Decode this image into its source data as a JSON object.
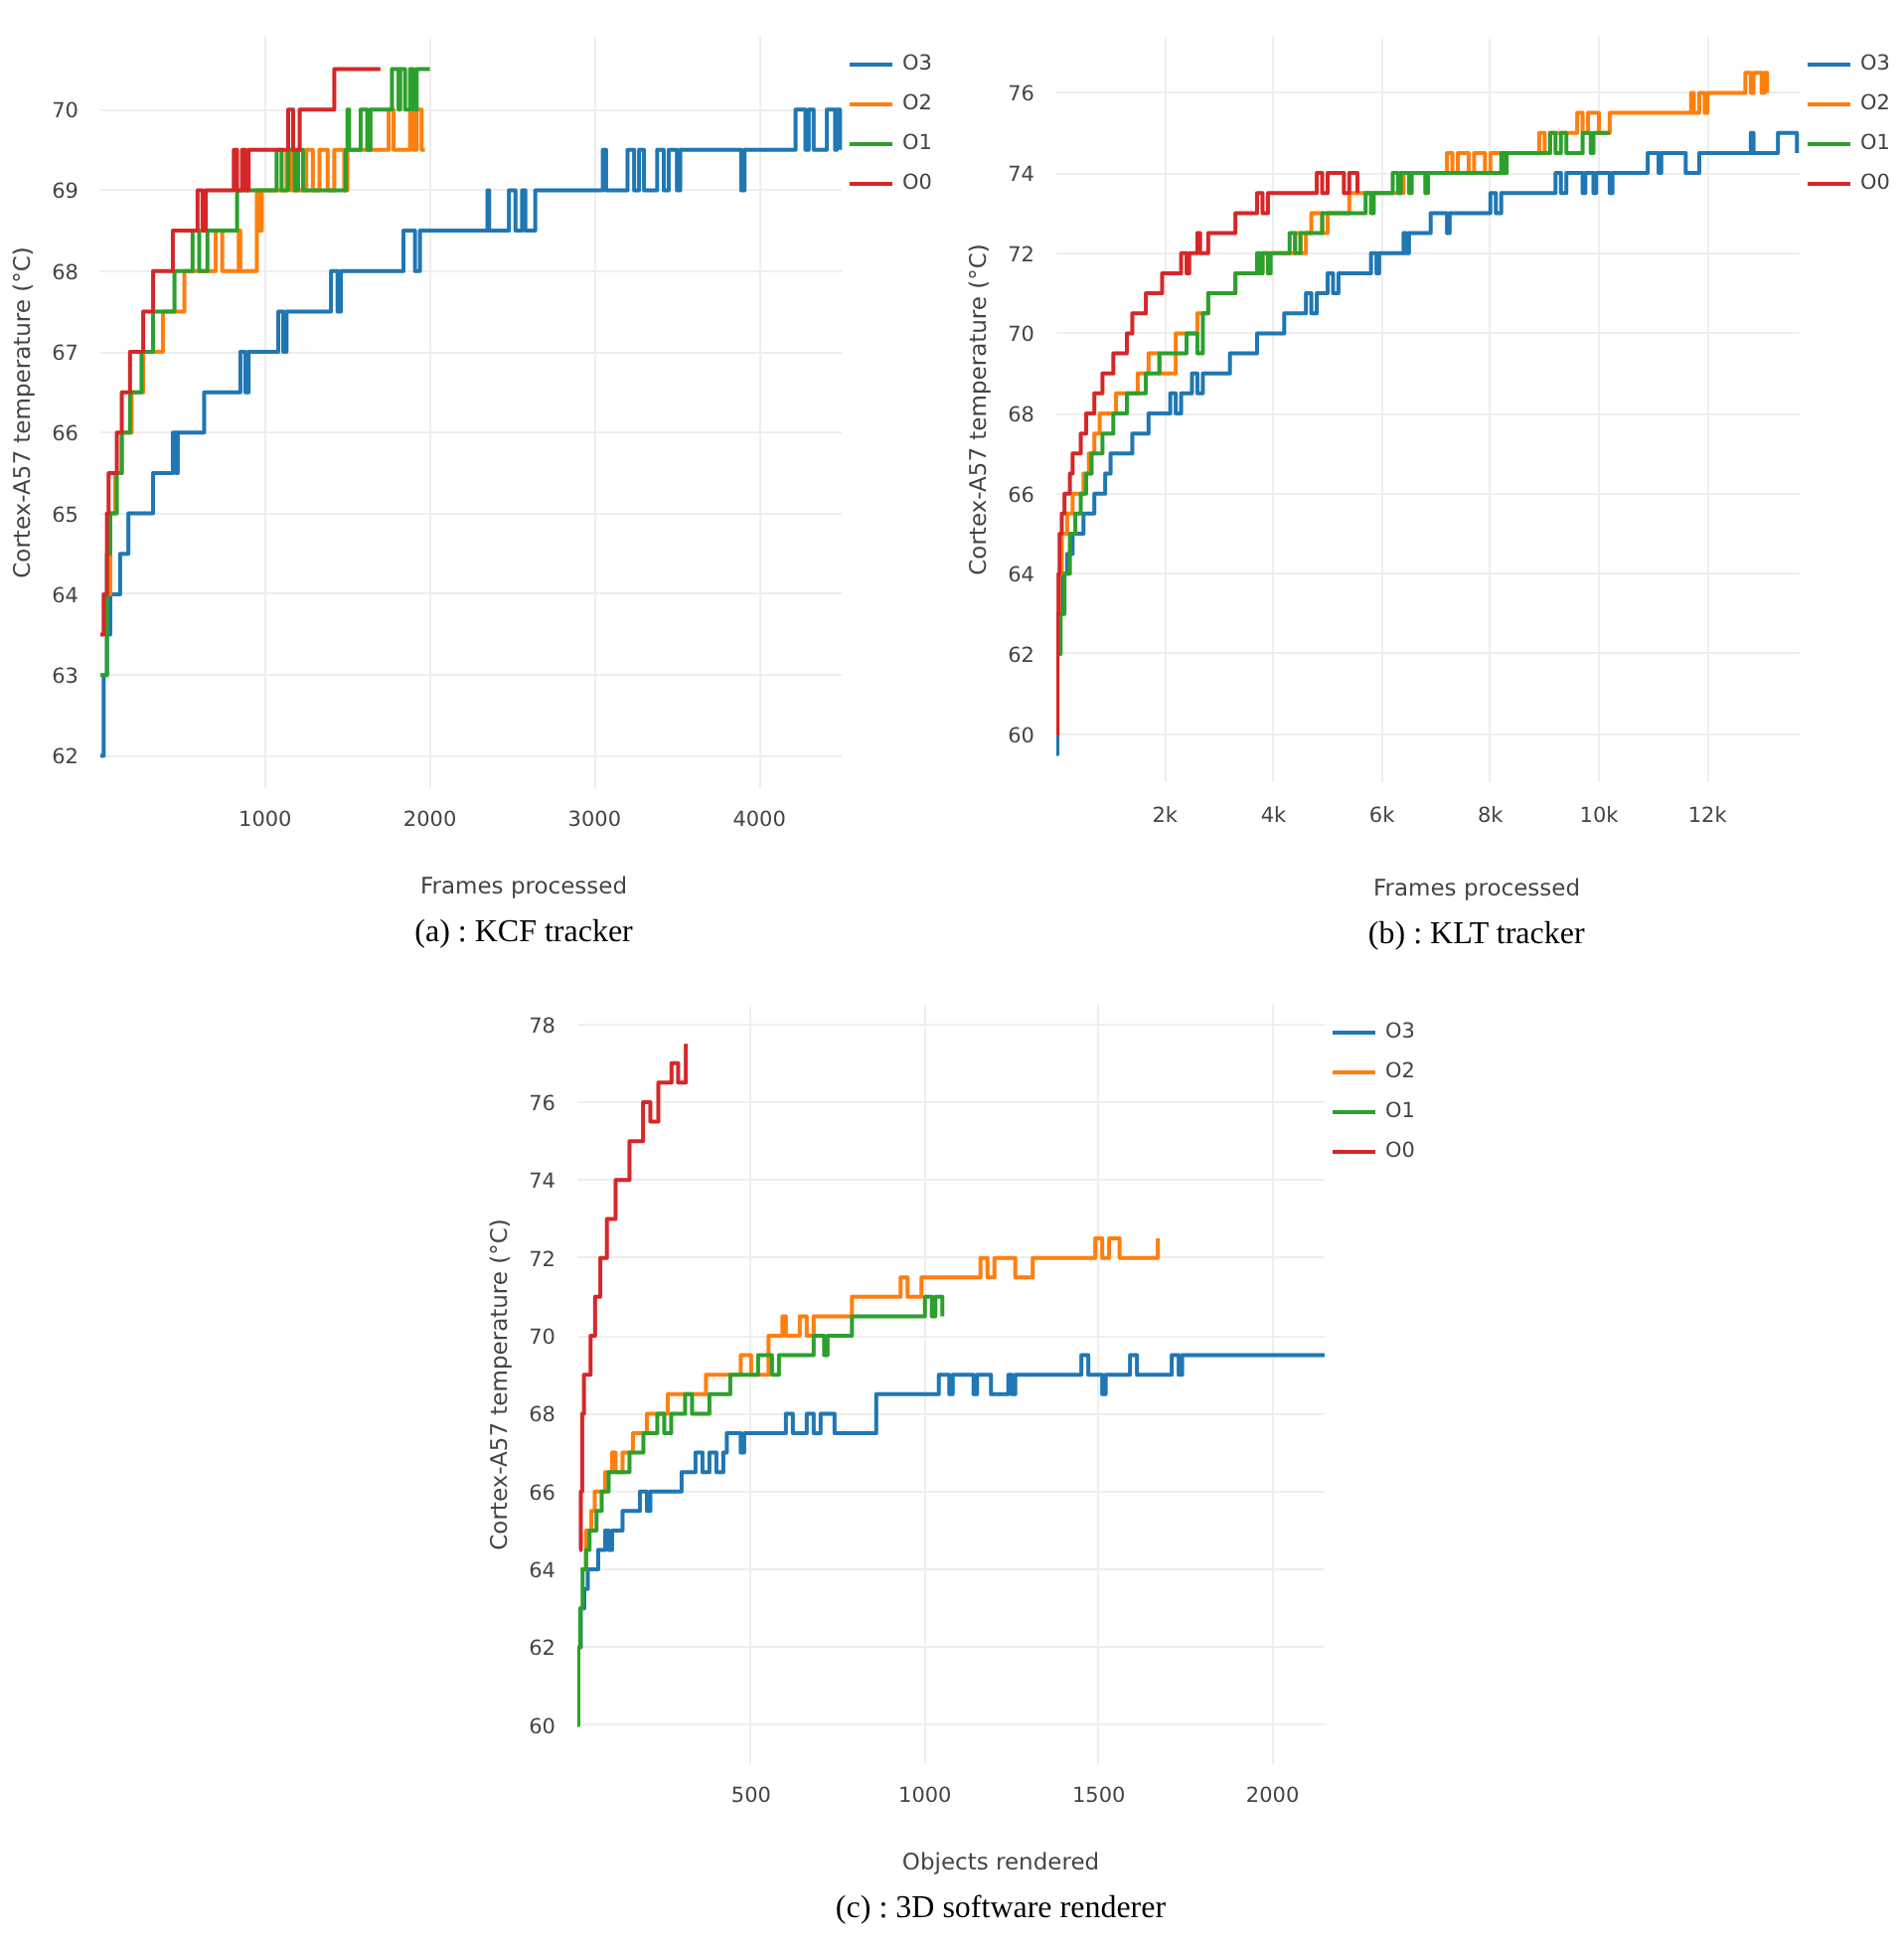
{
  "chart_data": [
    {
      "type": "step",
      "xlabel": "Frames processed",
      "ylabel": "Cortex-A57 temperature (°C)",
      "annotations": [
        "(a) : KCF tracker"
      ],
      "xlim": [
        0,
        4500
      ],
      "ylim": [
        61.6,
        70.9
      ],
      "xticks": [
        1000,
        2000,
        3000,
        4000
      ],
      "yticks": [
        62,
        63,
        64,
        65,
        66,
        67,
        68,
        69,
        70
      ],
      "grid": true,
      "legend": "top right",
      "series": [
        {
          "name": "O3",
          "color": "#1f77b4",
          "x": [
            0,
            20,
            40,
            60,
            120,
            170,
            320,
            440,
            460,
            470,
            630,
            850,
            880,
            900,
            1080,
            1110,
            1130,
            1400,
            1440,
            1460,
            1840,
            1910,
            1940,
            2350,
            2360,
            2480,
            2520,
            2560,
            2580,
            2640,
            3050,
            3070,
            3200,
            3240,
            3270,
            3300,
            3380,
            3420,
            3450,
            3500,
            3520,
            3890,
            3910,
            4220,
            4280,
            4300,
            4330,
            4410,
            4460,
            4470,
            4490
          ],
          "values": [
            62,
            63,
            63.5,
            64,
            64.5,
            65,
            65.5,
            66,
            65.5,
            66,
            66.5,
            67,
            66.5,
            67,
            67.5,
            67,
            67.5,
            68,
            67.5,
            68,
            68.5,
            68,
            68.5,
            69,
            68.5,
            69,
            68.5,
            69,
            68.5,
            69,
            69.5,
            69,
            69.5,
            69,
            69.5,
            69,
            69.5,
            69,
            69.5,
            69,
            69.5,
            69,
            69.5,
            70,
            69.5,
            70,
            69.5,
            70,
            69.5,
            70,
            69.5
          ]
        },
        {
          "name": "O2",
          "color": "#ff7f0e",
          "x": [
            20,
            60,
            90,
            130,
            190,
            260,
            380,
            510,
            700,
            740,
            840,
            850,
            950,
            970,
            980,
            1130,
            1160,
            1250,
            1290,
            1330,
            1380,
            1420,
            1480,
            1500,
            1750,
            1780,
            1880,
            1900,
            1920,
            1950,
            1970
          ],
          "values": [
            64,
            65,
            65.5,
            66,
            66.5,
            67,
            67.5,
            68,
            68.5,
            68,
            68.5,
            68,
            69,
            68.5,
            69,
            69.5,
            69,
            69.5,
            69,
            69.5,
            69,
            69.5,
            69,
            69.5,
            70,
            69.5,
            70,
            69.5,
            70,
            69.5,
            69.5
          ]
        },
        {
          "name": "O1",
          "color": "#2ca02c",
          "x": [
            0,
            40,
            60,
            100,
            130,
            180,
            250,
            320,
            450,
            560,
            600,
            650,
            830,
            1070,
            1100,
            1140,
            1180,
            1200,
            1230,
            1490,
            1500,
            1510,
            1580,
            1620,
            1640,
            1770,
            1810,
            1820,
            1850,
            1880,
            1900,
            1920,
            2000
          ],
          "values": [
            63,
            64.5,
            65,
            65.5,
            66,
            66.5,
            67,
            67.5,
            68,
            68.5,
            68,
            68.5,
            69,
            69.5,
            69,
            69.5,
            69,
            69.5,
            69,
            69.5,
            70,
            69.5,
            70,
            69.5,
            70,
            70.5,
            70,
            70.5,
            70,
            70.5,
            70,
            70.5,
            70.5
          ]
        },
        {
          "name": "O0",
          "color": "#d62728",
          "x": [
            0,
            20,
            40,
            50,
            100,
            130,
            180,
            260,
            320,
            440,
            590,
            620,
            640,
            810,
            830,
            860,
            880,
            900,
            1140,
            1170,
            1210,
            1420,
            1700
          ],
          "values": [
            63.5,
            64,
            65,
            65.5,
            66,
            66.5,
            67,
            67.5,
            68,
            68.5,
            69,
            68.5,
            69,
            69.5,
            69,
            69.5,
            69,
            69.5,
            70,
            69.5,
            70,
            70.5,
            70.5
          ]
        }
      ]
    },
    {
      "type": "step",
      "xlabel": "Frames processed",
      "ylabel": "Cortex-A57 temperature (°C)",
      "annotations": [
        "(b) : KLT tracker"
      ],
      "xlim": [
        0,
        13700
      ],
      "ylim": [
        58.8,
        77.4
      ],
      "xticks": [
        {
          "value": 2000,
          "label": "2k"
        },
        {
          "value": 4000,
          "label": "4k"
        },
        {
          "value": 6000,
          "label": "6k"
        },
        {
          "value": 8000,
          "label": "8k"
        },
        {
          "value": 10000,
          "label": "10k"
        },
        {
          "value": 12000,
          "label": "12k"
        }
      ],
      "yticks": [
        60,
        62,
        64,
        66,
        68,
        70,
        72,
        74,
        76
      ],
      "grid": true,
      "legend": "top right",
      "series": [
        {
          "name": "O3",
          "color": "#1f77b4",
          "x": [
            0,
            20,
            50,
            100,
            200,
            300,
            500,
            700,
            900,
            1000,
            1400,
            1700,
            2100,
            2200,
            2300,
            2500,
            2600,
            2700,
            3200,
            3700,
            4200,
            4600,
            4700,
            4800,
            5000,
            5100,
            5200,
            5800,
            5900,
            5950,
            6400,
            6450,
            6500,
            6900,
            7200,
            7250,
            8000,
            8100,
            8200,
            9200,
            9300,
            9400,
            9700,
            9750,
            9900,
            9950,
            10200,
            10250,
            10900,
            11100,
            11150,
            11600,
            11850,
            12800,
            12850,
            13300,
            13650
          ],
          "values": [
            59.5,
            62,
            63,
            64,
            64.5,
            65,
            65.5,
            66,
            66.5,
            67,
            67.5,
            68,
            68.5,
            68,
            68.5,
            69,
            68.5,
            69,
            69.5,
            70,
            70.5,
            71,
            70.5,
            71,
            71.5,
            71,
            71.5,
            72,
            71.5,
            72,
            72.5,
            72,
            72.5,
            73,
            72.5,
            73,
            73.5,
            73,
            73.5,
            74,
            73.5,
            74,
            73.5,
            74,
            73.5,
            74,
            73.5,
            74,
            74.5,
            74,
            74.5,
            74,
            74.5,
            75,
            74.5,
            75,
            74.5
          ]
        },
        {
          "name": "O2",
          "color": "#ff7f0e",
          "x": [
            20,
            50,
            100,
            200,
            300,
            500,
            600,
            700,
            800,
            1100,
            1500,
            1700,
            1900,
            2200,
            2600,
            2800,
            3300,
            3800,
            4400,
            4500,
            4600,
            4700,
            4900,
            5000,
            5400,
            6400,
            7200,
            7300,
            7400,
            7600,
            7700,
            7900,
            8000,
            8900,
            9000,
            9100,
            9600,
            9700,
            9800,
            10000,
            10200,
            11700,
            11750,
            11850,
            11950,
            12000,
            12700,
            12800,
            12850,
            13000,
            13050,
            13100
          ],
          "values": [
            63,
            64,
            65,
            65.5,
            66,
            66.5,
            67,
            67.5,
            68,
            68.5,
            69,
            69.5,
            69,
            70,
            70.5,
            71,
            71.5,
            72,
            72.5,
            72,
            72.5,
            73,
            72.5,
            73,
            73.5,
            74,
            74.5,
            74,
            74.5,
            74,
            74.5,
            74,
            74.5,
            75,
            74.5,
            75,
            75.5,
            75,
            75.5,
            75,
            75.5,
            76,
            75.5,
            76,
            75.5,
            76,
            76.5,
            76,
            76.5,
            76,
            76.5,
            76
          ]
        },
        {
          "name": "O1",
          "color": "#2ca02c",
          "x": [
            20,
            80,
            150,
            250,
            350,
            450,
            550,
            650,
            850,
            1050,
            1300,
            1650,
            1900,
            2400,
            2600,
            2700,
            2800,
            3300,
            3700,
            3750,
            3800,
            3900,
            3950,
            4300,
            4400,
            4500,
            4900,
            5700,
            5800,
            5850,
            6200,
            6300,
            6350,
            6500,
            6550,
            6800,
            6850,
            8200,
            8250,
            8300,
            9100,
            9200,
            9300,
            9400,
            9700,
            9850,
            9900,
            10200
          ],
          "values": [
            62,
            63,
            64,
            65,
            65.5,
            66,
            66.5,
            67,
            67.5,
            68,
            68.5,
            69,
            69.5,
            70,
            69.5,
            70.5,
            71,
            71.5,
            72,
            71.5,
            72,
            71.5,
            72,
            72.5,
            72,
            72.5,
            73,
            73.5,
            73,
            73.5,
            74,
            73.5,
            74,
            73.5,
            74,
            73.5,
            74,
            74.5,
            74,
            74.5,
            75,
            74.5,
            75,
            74.5,
            75,
            74.5,
            75,
            75
          ]
        },
        {
          "name": "O0",
          "color": "#d62728",
          "x": [
            0,
            20,
            40,
            60,
            100,
            150,
            250,
            300,
            450,
            550,
            700,
            850,
            1050,
            1300,
            1400,
            1650,
            1950,
            2300,
            2400,
            2450,
            2600,
            2650,
            2800,
            3300,
            3700,
            3800,
            3900,
            4800,
            4900,
            5000,
            5300,
            5400,
            5550
          ],
          "values": [
            60,
            63,
            64,
            65,
            65.5,
            66,
            66.5,
            67,
            67.5,
            68,
            68.5,
            69,
            69.5,
            70,
            70.5,
            71,
            71.5,
            72,
            71.5,
            72,
            72.5,
            72,
            72.5,
            73,
            73.5,
            73,
            73.5,
            74,
            73.5,
            74,
            73.5,
            74,
            73.5
          ]
        }
      ]
    },
    {
      "type": "step",
      "xlabel": "Objects rendered",
      "ylabel": "Cortex-A57 temperature (°C)",
      "annotations": [
        "(c) : 3D software renderer"
      ],
      "xlim": [
        0,
        2150
      ],
      "ylim": [
        59.0,
        78.5
      ],
      "xticks": [
        500,
        1000,
        1500,
        2000
      ],
      "yticks": [
        60,
        62,
        64,
        66,
        68,
        70,
        72,
        74,
        76,
        78
      ],
      "grid": true,
      "legend": "top right",
      "series": [
        {
          "name": "O3",
          "color": "#1f77b4",
          "x": [
            5,
            10,
            20,
            30,
            60,
            80,
            90,
            100,
            130,
            180,
            200,
            210,
            300,
            340,
            360,
            380,
            400,
            420,
            430,
            470,
            480,
            600,
            620,
            660,
            680,
            700,
            740,
            860,
            1040,
            1070,
            1080,
            1140,
            1150,
            1190,
            1240,
            1250,
            1260,
            1450,
            1470,
            1510,
            1520,
            1590,
            1610,
            1710,
            1730,
            1740,
            2150
          ],
          "values": [
            62,
            63,
            63.5,
            64,
            64.5,
            65,
            64.5,
            65,
            65.5,
            66,
            65.5,
            66,
            66.5,
            67,
            66.5,
            67,
            66.5,
            67,
            67.5,
            67,
            67.5,
            68,
            67.5,
            68,
            67.5,
            68,
            67.5,
            68.5,
            69,
            68.5,
            69,
            68.5,
            69,
            68.5,
            69,
            68.5,
            69,
            69.5,
            69,
            68.5,
            69,
            69.5,
            69,
            69.5,
            69,
            69.5,
            69.5
          ]
        },
        {
          "name": "O2",
          "color": "#ff7f0e",
          "x": [
            10,
            25,
            40,
            50,
            80,
            100,
            110,
            130,
            160,
            200,
            260,
            370,
            470,
            500,
            550,
            590,
            600,
            640,
            660,
            680,
            790,
            930,
            950,
            990,
            1160,
            1180,
            1200,
            1260,
            1310,
            1490,
            1510,
            1530,
            1560,
            1670
          ],
          "values": [
            64,
            65,
            65.5,
            66,
            66.5,
            67,
            66.5,
            67,
            67.5,
            68,
            68.5,
            69,
            69.5,
            69,
            70,
            70.5,
            70,
            70.5,
            70,
            70.5,
            71,
            71.5,
            71,
            71.5,
            72,
            71.5,
            72,
            71.5,
            72,
            72.5,
            72,
            72.5,
            72,
            72.5
          ]
        },
        {
          "name": "O1",
          "color": "#2ca02c",
          "x": [
            0,
            3,
            8,
            15,
            25,
            35,
            55,
            70,
            90,
            150,
            190,
            230,
            250,
            270,
            310,
            330,
            380,
            440,
            520,
            560,
            580,
            680,
            710,
            720,
            790,
            1000,
            1020,
            1030,
            1050
          ],
          "values": [
            60,
            62,
            63,
            64,
            64.5,
            65,
            65.5,
            66,
            66.5,
            67,
            67.5,
            68,
            67.5,
            68,
            68.5,
            68,
            68.5,
            69,
            69.5,
            69,
            69.5,
            70,
            69.5,
            70,
            70.5,
            71,
            70.5,
            71,
            70.5
          ]
        },
        {
          "name": "O0",
          "color": "#d62728",
          "x": [
            6,
            10,
            14,
            19,
            38,
            51,
            66,
            85,
            110,
            150,
            189,
            210,
            233,
            271,
            290,
            312
          ],
          "values": [
            64.5,
            66,
            68,
            69,
            70,
            71,
            72,
            73,
            74,
            75,
            76,
            75.5,
            76.5,
            77,
            76.5,
            77.5
          ]
        }
      ]
    }
  ]
}
